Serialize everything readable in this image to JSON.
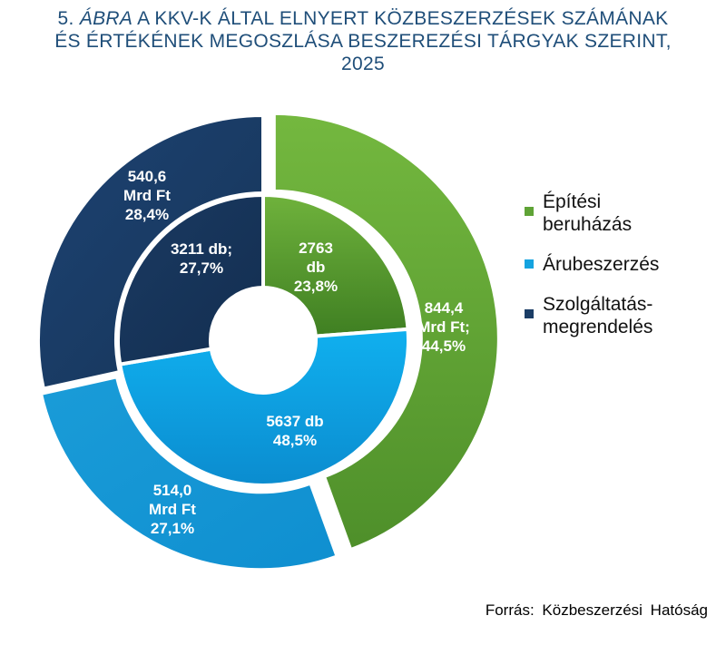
{
  "title": {
    "prefix": "5.",
    "abra": "ÁBRA",
    "line1_rest": "A KKV-K ÁLTAL ELNYERT KÖZBESZERZÉSEK SZÁMÁNAK",
    "line2": "ÉS ÉRTÉKÉNEK MEGOSZLÁSA BESZEREZÉSI TÁRGYAK SZERINT,",
    "line3": "2025"
  },
  "legend": [
    {
      "label_lines": [
        "Építési",
        "beruházás"
      ],
      "color": "#5fa336"
    },
    {
      "label_lines": [
        "Árubeszerzés"
      ],
      "color": "#14a3e0"
    },
    {
      "label_lines": [
        "Szolgáltatás-",
        "megrendelés"
      ],
      "color": "#1b3d66"
    }
  ],
  "source": "Forrás: Közbeszerzési Hatóság",
  "chart_data": {
    "type": "pie",
    "variant": "doughnut",
    "categories": [
      "Építési beruházás",
      "Árubeszerzés",
      "Szolgáltatás-megrendelés"
    ],
    "inner_ring": {
      "series": "count",
      "values": [
        2763,
        5637,
        3211
      ],
      "percents": [
        23.8,
        48.5,
        27.7
      ],
      "labels": [
        [
          "2763",
          "db",
          "23,8%"
        ],
        [
          "5637 db",
          "48,5%"
        ],
        [
          "3211 db;",
          "27,7%"
        ]
      ]
    },
    "outer_ring": {
      "series": "value",
      "values": [
        844.4,
        514.0,
        540.6
      ],
      "percents": [
        44.5,
        27.1,
        28.4
      ],
      "labels": [
        [
          "844,4",
          "Mrd Ft;",
          "44,5%"
        ],
        [
          "514,0",
          "Mrd Ft",
          "27,1%"
        ],
        [
          "540,6",
          "Mrd Ft",
          "28,4%"
        ]
      ]
    },
    "colors": [
      "#5fa336",
      "#14a3e0",
      "#1b3d66"
    ],
    "start_angle_deg": 0,
    "direction": "clockwise",
    "legend_position": "right"
  }
}
